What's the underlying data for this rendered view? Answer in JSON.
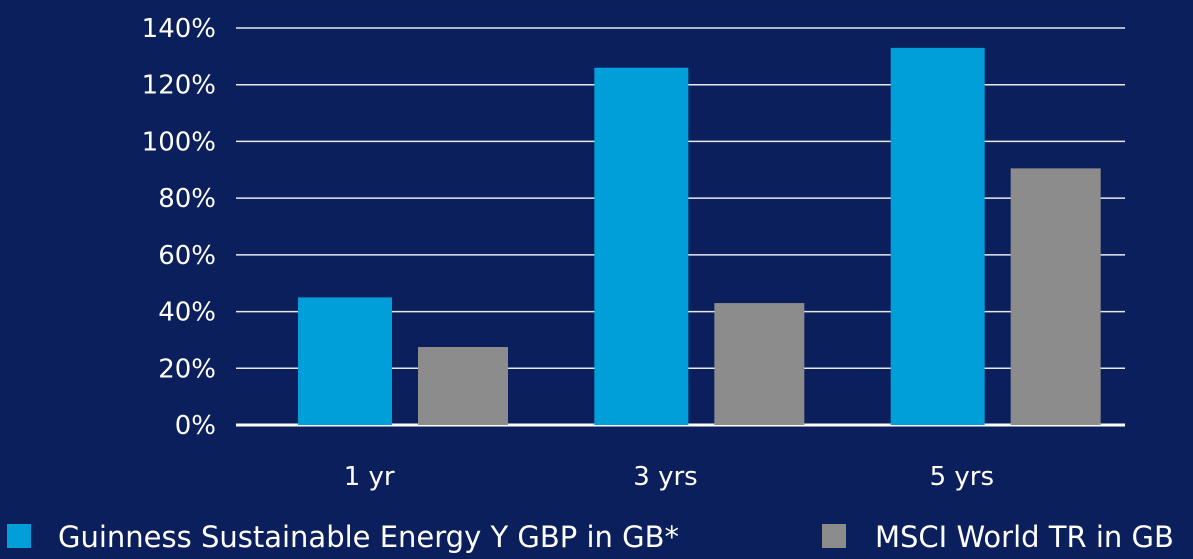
{
  "chart_data": {
    "type": "bar",
    "title": "",
    "xlabel": "",
    "ylabel": "",
    "categories": [
      "1 yr",
      "3 yrs",
      "5 yrs"
    ],
    "series": [
      {
        "name": "Guinness Sustainable Energy Y GBP in GB*",
        "color": "#009fd9",
        "values": [
          45,
          126,
          133
        ]
      },
      {
        "name": "MSCI World TR in GB",
        "color": "#8c8c8c",
        "values": [
          27.5,
          43,
          90.5
        ]
      }
    ],
    "ylim": [
      0,
      140
    ],
    "yticks": [
      "0%",
      "20%",
      "40%",
      "60%",
      "80%",
      "100%",
      "120%",
      "140%"
    ],
    "ytick_values": [
      0,
      20,
      40,
      60,
      80,
      100,
      120,
      140
    ],
    "grid": true,
    "gridline_color": "#ffffff",
    "background_color": "#0b1f5c",
    "legend_position": "bottom"
  }
}
